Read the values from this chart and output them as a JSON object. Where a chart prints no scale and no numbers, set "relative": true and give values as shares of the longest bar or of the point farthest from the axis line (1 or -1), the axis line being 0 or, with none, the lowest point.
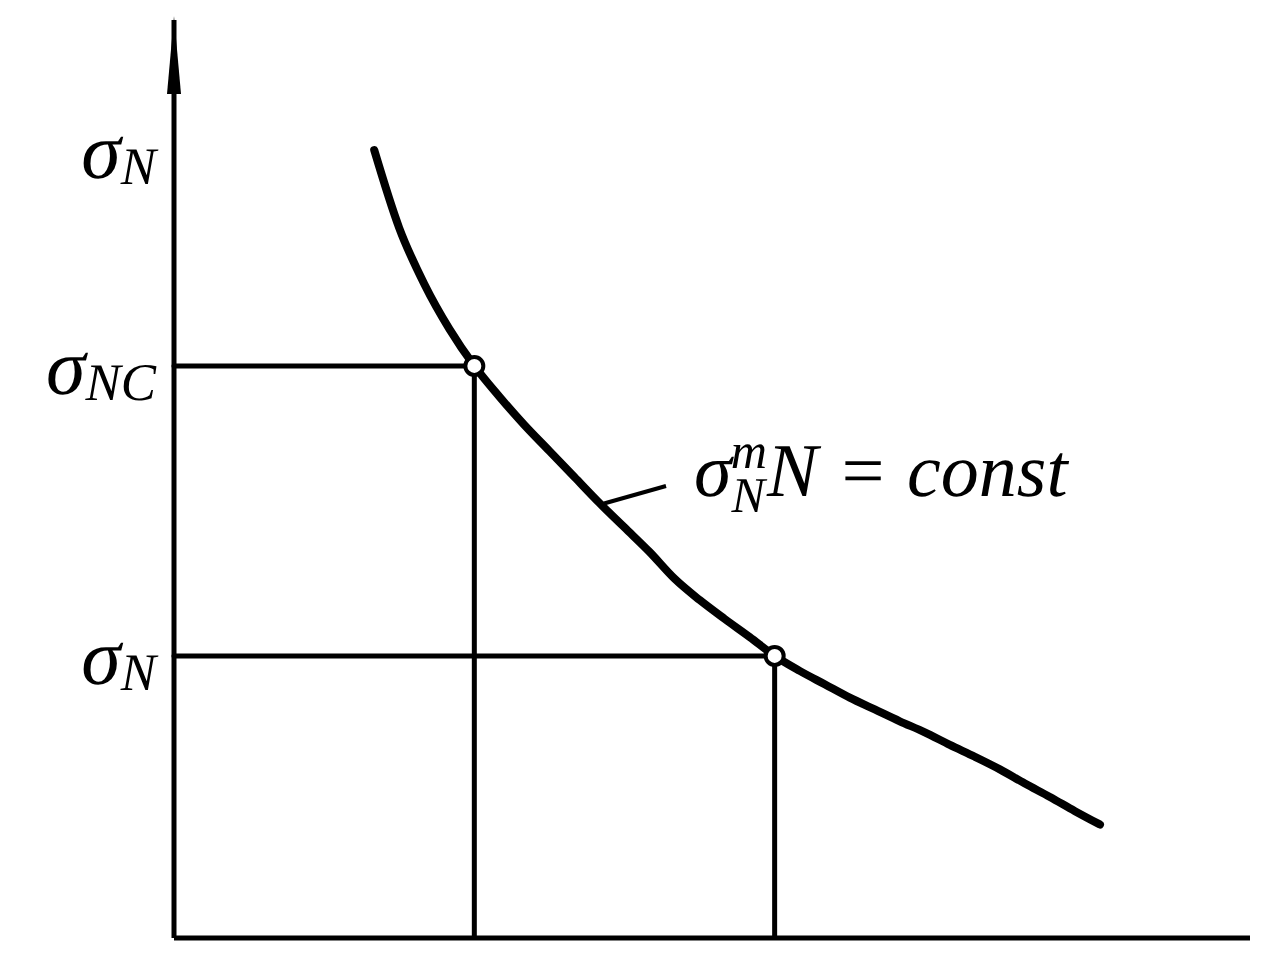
{
  "chart_data": {
    "type": "line",
    "relative": true,
    "marker": "none",
    "ylabel": "σ$_{N}$",
    "categories": [
      null,
      null,
      null,
      null,
      null,
      null,
      null,
      null,
      null,
      null,
      null,
      null,
      null,
      null,
      null,
      null,
      null,
      null,
      null,
      null,
      null,
      null,
      null,
      null,
      null,
      null,
      null,
      null,
      null,
      null,
      null,
      null,
      null,
      null,
      null,
      null,
      null,
      null
    ],
    "annotations": [
      "σ$_{N}$$^{m}$N = const"
    ],
    "series": [
      {
        "color": "#000000",
        "values": [
          null,
          null,
          null,
          null,
          null,
          null,
          null,
          null,
          1.0,
          0.901,
          0.83,
          0.773,
          0.726,
          0.687,
          0.651,
          0.618,
          0.585,
          0.552,
          0.521,
          0.49,
          0.456,
          0.429,
          0.405,
          0.382,
          0.358,
          0.339,
          0.322,
          0.305,
          0.29,
          0.275,
          0.261,
          0.245,
          0.23,
          0.214,
          0.196,
          0.179,
          0.161,
          0.144
        ]
      },
      {
        "type": "step",
        "name": "σ$_{NC}$",
        "color": "#000000",
        "values": [
          0.726,
          0.726,
          0.726,
          0.726,
          0.726,
          0.726,
          0.726,
          0.726,
          0.726,
          0.726,
          0.726,
          0.726,
          0,
          null,
          null,
          null,
          null,
          null,
          null,
          null,
          null,
          null,
          null,
          null,
          null,
          null,
          null,
          null,
          null,
          null,
          null,
          null,
          null,
          null,
          null,
          null,
          null,
          null
        ]
      },
      {
        "type": "step",
        "name": "σ$_{N}$",
        "color": "#000000",
        "values": [
          0.358,
          0.358,
          0.358,
          0.358,
          0.358,
          0.358,
          0.358,
          0.358,
          0.358,
          0.358,
          0.358,
          0.358,
          0.358,
          0.358,
          0.358,
          0.358,
          0.358,
          0.358,
          0.358,
          0.358,
          0.358,
          0.358,
          0.358,
          0.358,
          0,
          null,
          null,
          null,
          null,
          null,
          null,
          null,
          null,
          null,
          null,
          null,
          null,
          null
        ]
      },
      {
        "color": "#000000",
        "marker": "circle",
        "values": [
          null,
          null,
          null,
          null,
          null,
          null,
          null,
          null,
          null,
          null,
          null,
          null,
          0.726,
          null,
          null,
          null,
          null,
          null,
          null,
          null,
          null,
          null,
          null,
          null,
          0.358,
          null,
          null,
          null,
          null,
          null,
          null,
          null,
          null,
          null,
          null,
          null,
          null,
          null
        ]
      }
    ]
  }
}
